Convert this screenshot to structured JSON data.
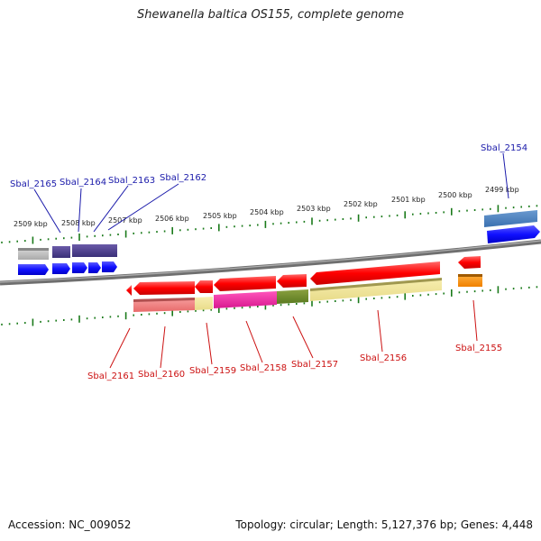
{
  "title": "Shewanella baltica OS155, complete genome",
  "footer": {
    "accession": "Accession: NC_009052",
    "summary": "Topology: circular; Length: 5,127,376 bp; Genes: 4,448"
  },
  "colors": {
    "forward_label": "#1a1aaa",
    "reverse_label": "#cc1111",
    "tick": "#1a7a1a",
    "backbone": "#7a7a7a"
  },
  "chart_data": {
    "type": "genome-map",
    "position_labels": [
      "2509 kbp",
      "2508 kbp",
      "2507 kbp",
      "2506 kbp",
      "2505 kbp",
      "2504 kbp",
      "2503 kbp",
      "2502 kbp",
      "2501 kbp",
      "2500 kbp",
      "2499 kbp"
    ],
    "genes": [
      {
        "name": "Sbal_2165",
        "strand": "+",
        "label_color": "#1a1aaa"
      },
      {
        "name": "Sbal_2164",
        "strand": "+",
        "label_color": "#1a1aaa"
      },
      {
        "name": "Sbal_2163",
        "strand": "+",
        "label_color": "#1a1aaa"
      },
      {
        "name": "Sbal_2162",
        "strand": "+",
        "label_color": "#1a1aaa"
      },
      {
        "name": "Sbal_2154",
        "strand": "+",
        "label_color": "#1a1aaa"
      },
      {
        "name": "Sbal_2161",
        "strand": "-",
        "label_color": "#cc1111"
      },
      {
        "name": "Sbal_2160",
        "strand": "-",
        "label_color": "#cc1111"
      },
      {
        "name": "Sbal_2159",
        "strand": "-",
        "label_color": "#cc1111"
      },
      {
        "name": "Sbal_2158",
        "strand": "-",
        "label_color": "#cc1111"
      },
      {
        "name": "Sbal_2157",
        "strand": "-",
        "label_color": "#cc1111"
      },
      {
        "name": "Sbal_2156",
        "strand": "-",
        "label_color": "#cc1111"
      },
      {
        "name": "Sbal_2155",
        "strand": "-",
        "label_color": "#cc1111"
      }
    ]
  }
}
